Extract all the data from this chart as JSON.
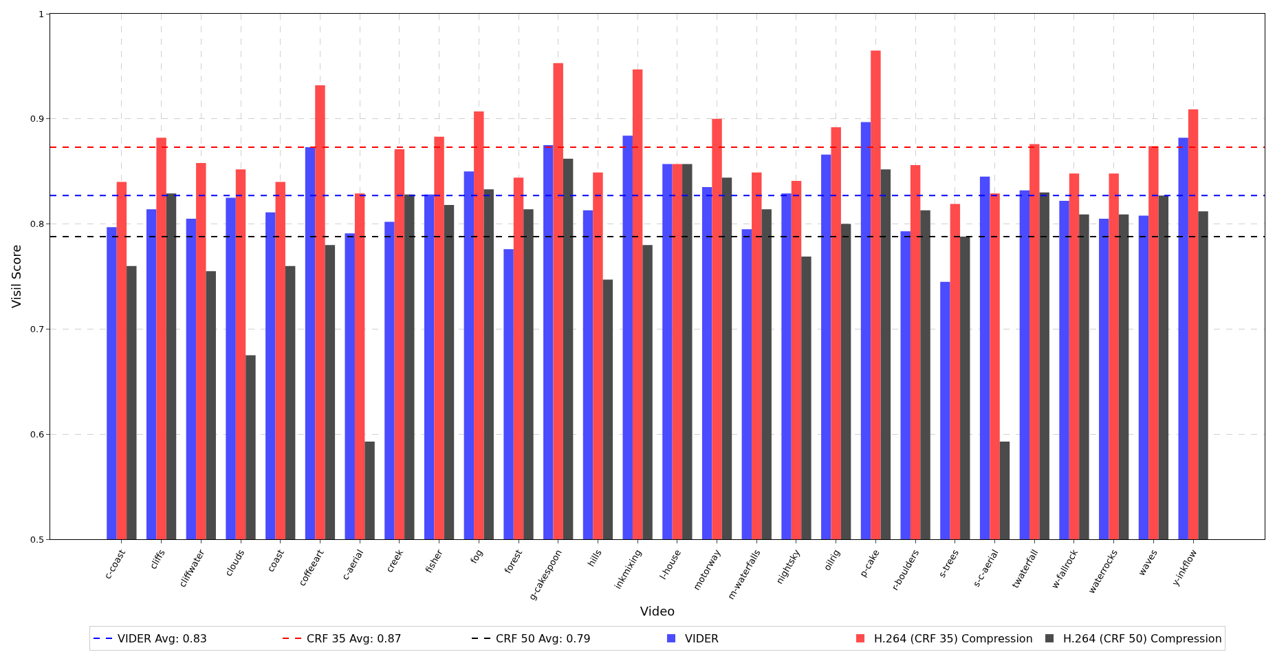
{
  "chart_data": {
    "type": "bar",
    "xlabel": "Video",
    "ylabel": "Visil Score",
    "categories": [
      "c-coast",
      "cliffs",
      "cliffwater",
      "clouds",
      "coast",
      "coffeeart",
      "c-aerial",
      "creek",
      "fisher",
      "fog",
      "forest",
      "g-cakespoon",
      "hills",
      "inkmixing",
      "l-house",
      "motorway",
      "m-waterfalls",
      "nightsky",
      "oilrig",
      "p-cake",
      "r-boulders",
      "s-trees",
      "s-c-aerial",
      "twaterfall",
      "w-fallrock",
      "waterrocks",
      "waves",
      "y-inkflow"
    ],
    "series": [
      {
        "name": "VIDER",
        "color": "#4b4bff",
        "values": [
          0.797,
          0.814,
          0.805,
          0.825,
          0.811,
          0.873,
          0.791,
          0.802,
          0.828,
          0.85,
          0.776,
          0.875,
          0.813,
          0.884,
          0.857,
          0.835,
          0.795,
          0.829,
          0.866,
          0.897,
          0.793,
          0.745,
          0.845,
          0.832,
          0.822,
          0.805,
          0.808,
          0.882
        ]
      },
      {
        "name": "H.264 (CRF 35) Compression",
        "color": "#ff4b4b",
        "values": [
          0.84,
          0.882,
          0.858,
          0.852,
          0.84,
          0.932,
          0.829,
          0.871,
          0.883,
          0.907,
          0.844,
          0.953,
          0.849,
          0.947,
          0.857,
          0.9,
          0.849,
          0.841,
          0.892,
          0.965,
          0.856,
          0.819,
          0.829,
          0.876,
          0.848,
          0.848,
          0.874,
          0.909
        ]
      },
      {
        "name": "H.264 (CRF 50) Compression",
        "color": "#4b4b4b",
        "values": [
          0.76,
          0.829,
          0.755,
          0.675,
          0.76,
          0.78,
          0.593,
          0.828,
          0.818,
          0.833,
          0.814,
          0.862,
          0.747,
          0.78,
          0.857,
          0.844,
          0.814,
          0.769,
          0.8,
          0.852,
          0.813,
          0.788,
          0.593,
          0.83,
          0.809,
          0.809,
          0.827,
          0.812
        ]
      }
    ],
    "ref_lines": [
      {
        "axis": "y",
        "value": 0.827,
        "label": "VIDER Avg: 0.83",
        "color": "#0000ff",
        "line_style": "dashed"
      },
      {
        "axis": "y",
        "value": 0.873,
        "label": "CRF 35 Avg: 0.87",
        "color": "#ff0000",
        "line_style": "dashed"
      },
      {
        "axis": "y",
        "value": 0.788,
        "label": "CRF 50 Avg: 0.79",
        "color": "#000000",
        "line_style": "dashed"
      }
    ],
    "ylim": [
      0.5,
      1.0
    ],
    "yticks": [
      0.5,
      0.6,
      0.7,
      0.8,
      0.9,
      1.0
    ],
    "grid": true,
    "legend": "bottom"
  }
}
